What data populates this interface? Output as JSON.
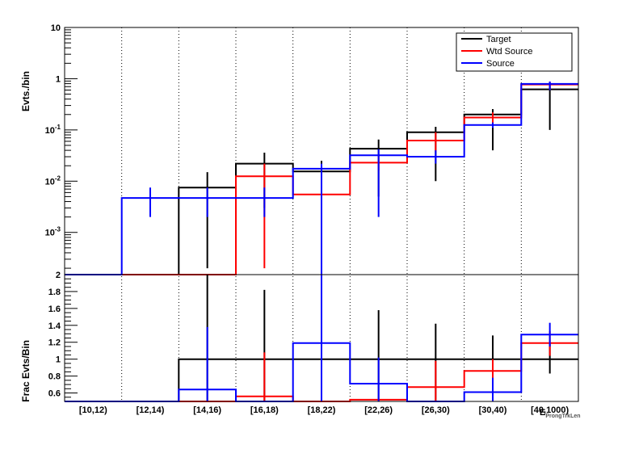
{
  "chart_data": [
    {
      "panel": "top",
      "type": "line",
      "ylabel": "Evts./bin",
      "yscale": "log",
      "ylim": [
        0.00015,
        10
      ],
      "ytick_labels": [
        {
          "value": 10,
          "text": "10"
        },
        {
          "value": 1,
          "text": "1"
        },
        {
          "value": 0.1,
          "base": "10",
          "exp": "-1"
        },
        {
          "value": 0.01,
          "base": "10",
          "exp": "-2"
        },
        {
          "value": 0.001,
          "base": "10",
          "exp": "-3"
        }
      ],
      "categories": [
        "[10,12)",
        "[12,14)",
        "[14,16)",
        "[16,18)",
        "[18,22)",
        "[22,26)",
        "[26,30)",
        "[30,40)",
        "[40,1000)"
      ],
      "xlabel": "E",
      "xlabel_sub": "ProngTrkLen",
      "legend": {
        "position": "top-right",
        "entries": [
          "Target",
          "Wtd Source",
          "Source"
        ]
      },
      "series": [
        {
          "name": "Target",
          "color": "#000000",
          "values": [
            0,
            0,
            0.0075,
            0.022,
            0.0155,
            0.043,
            0.09,
            0.2,
            0.62
          ],
          "err_low": [
            null,
            null,
            0.0002,
            0.003,
            0.001,
            0.005,
            0.01,
            0.04,
            0.1
          ],
          "err_high": [
            null,
            null,
            0.015,
            0.036,
            0.025,
            0.065,
            0.115,
            0.255,
            0.75
          ]
        },
        {
          "name": "Wtd Source",
          "color": "#ff0000",
          "values": [
            0,
            0,
            0,
            0.0125,
            0.0055,
            0.023,
            0.062,
            0.175,
            0.77
          ],
          "err_low": [
            null,
            null,
            null,
            0.0002,
            0.0028,
            0.016,
            0.038,
            0.12,
            0.6
          ],
          "err_high": [
            null,
            null,
            null,
            0.022,
            0.0094,
            0.033,
            0.09,
            0.22,
            0.88
          ]
        },
        {
          "name": "Source",
          "color": "#0000ff",
          "values": [
            0,
            0.0047,
            0.0047,
            0.0047,
            0.0175,
            0.032,
            0.03,
            0.125,
            0.79
          ],
          "err_low": [
            null,
            0.002,
            0.002,
            0.002,
            0.0001,
            0.002,
            0.022,
            0.11,
            0.6
          ],
          "err_high": [
            null,
            0.0075,
            0.0075,
            0.0075,
            0.022,
            0.042,
            0.04,
            0.14,
            0.88
          ]
        }
      ]
    },
    {
      "panel": "bottom",
      "type": "line",
      "ylabel": "Frac Evts/Bin",
      "ylim": [
        0.5,
        2
      ],
      "yticks": [
        0.6,
        0.8,
        1,
        1.2,
        1.4,
        1.6,
        1.8,
        2
      ],
      "ytick_labels": [
        "0.6",
        "0.8",
        "1",
        "1.2",
        "1.4",
        "1.6",
        "1.8",
        "2"
      ],
      "categories": [
        "[10,12)",
        "[12,14)",
        "[14,16)",
        "[16,18)",
        "[18,22)",
        "[22,26)",
        "[26,30)",
        "[30,40)",
        "[40,1000)"
      ],
      "series": [
        {
          "name": "Target",
          "color": "#000000",
          "values": [
            null,
            null,
            1,
            1,
            1,
            1,
            1,
            1,
            1
          ],
          "err_low": [
            null,
            null,
            0.5,
            0.5,
            0.5,
            0.5,
            0.5,
            0.72,
            0.83
          ],
          "err_high": [
            null,
            null,
            2,
            1.82,
            1.0,
            1.58,
            1.42,
            1.28,
            1.18
          ]
        },
        {
          "name": "Wtd Source",
          "color": "#ff0000",
          "values": [
            null,
            null,
            0.5,
            0.56,
            0.5,
            0.52,
            0.67,
            0.86,
            1.19
          ],
          "err_low": [
            null,
            null,
            null,
            0.5,
            0.5,
            0.5,
            0.5,
            0.72,
            1.04
          ],
          "err_high": [
            null,
            null,
            null,
            1.08,
            0.5,
            0.52,
            0.98,
            1.0,
            1.33
          ]
        },
        {
          "name": "Source",
          "color": "#0000ff",
          "values": [
            0.5,
            0.5,
            0.64,
            0.5,
            1.19,
            0.71,
            0.5,
            0.61,
            1.29
          ],
          "err_low": [
            null,
            null,
            0.5,
            null,
            0.5,
            0.5,
            null,
            0.5,
            1.15
          ],
          "err_high": [
            null,
            null,
            1.38,
            null,
            2,
            1.02,
            null,
            0.78,
            1.43
          ]
        }
      ]
    }
  ]
}
